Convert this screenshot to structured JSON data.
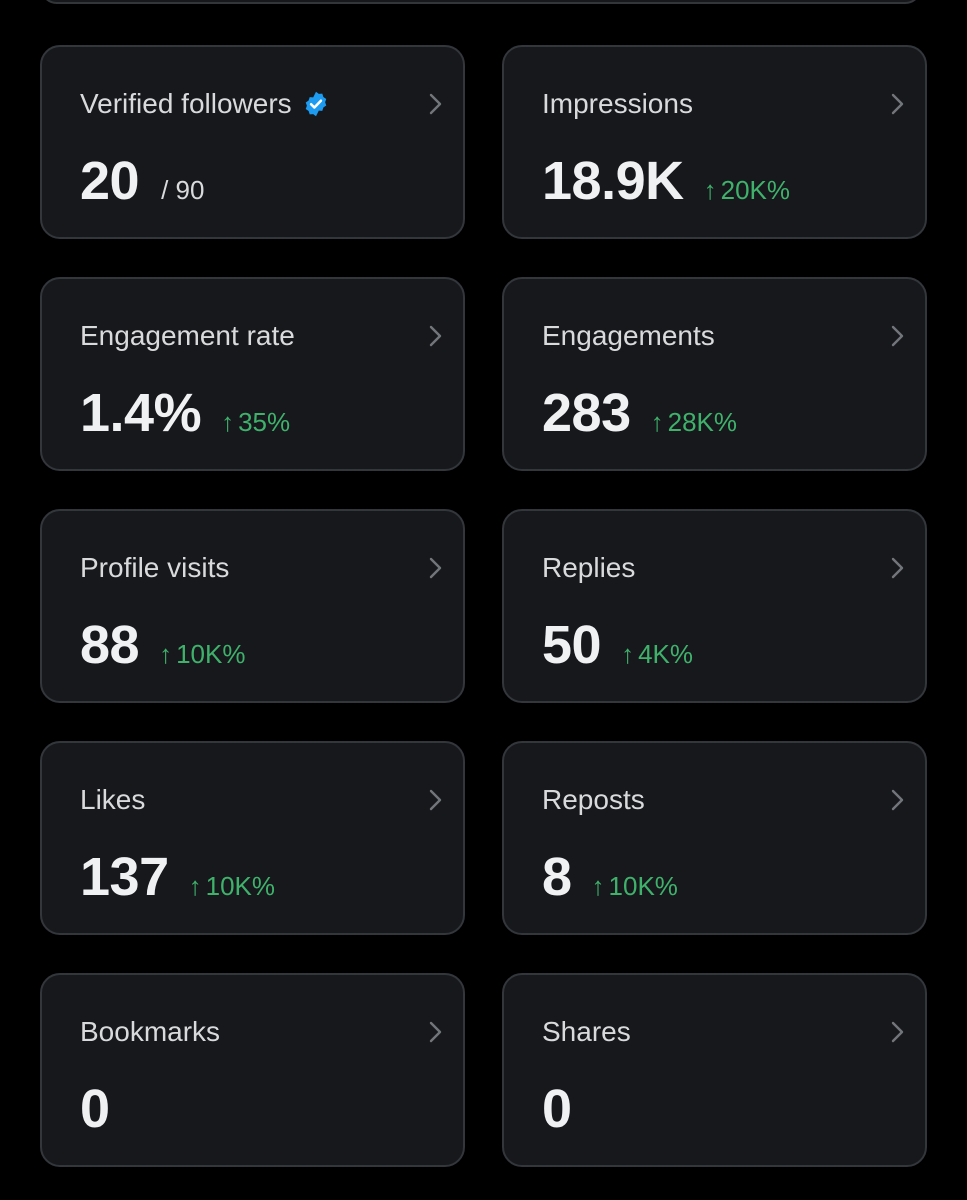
{
  "colors": {
    "background": "#000000",
    "card_background": "#16181c",
    "card_border": "#33363b",
    "label": "#d9dadc",
    "value": "#eff1f3",
    "positive_change": "#3fb16b",
    "verified_badge": "#1d9bf0"
  },
  "icons": {
    "chevron": "chevron-right-icon",
    "verified": "verified-badge-icon",
    "change": "arrow-up-icon"
  },
  "cards": [
    {
      "label": "Verified followers",
      "value": "20",
      "sub": "/ 90",
      "change": ""
    },
    {
      "label": "Impressions",
      "value": "18.9K",
      "sub": "",
      "change": "20K%"
    },
    {
      "label": "Engagement rate",
      "value": "1.4%",
      "sub": "",
      "change": "35%"
    },
    {
      "label": "Engagements",
      "value": "283",
      "sub": "",
      "change": "28K%"
    },
    {
      "label": "Profile visits",
      "value": "88",
      "sub": "",
      "change": "10K%"
    },
    {
      "label": "Replies",
      "value": "50",
      "sub": "",
      "change": "4K%"
    },
    {
      "label": "Likes",
      "value": "137",
      "sub": "",
      "change": "10K%"
    },
    {
      "label": "Reposts",
      "value": "8",
      "sub": "",
      "change": "10K%"
    },
    {
      "label": "Bookmarks",
      "value": "0",
      "sub": "",
      "change": ""
    },
    {
      "label": "Shares",
      "value": "0",
      "sub": "",
      "change": ""
    }
  ]
}
